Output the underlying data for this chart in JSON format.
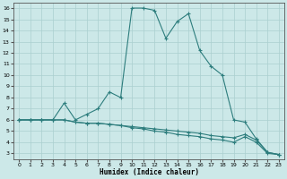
{
  "xlabel": "Humidex (Indice chaleur)",
  "bg_color": "#cce8e8",
  "line_color": "#2d7d7d",
  "grid_color": "#aacfcf",
  "xlim": [
    -0.5,
    23.5
  ],
  "ylim": [
    2.5,
    16.5
  ],
  "xticks": [
    0,
    1,
    2,
    3,
    4,
    5,
    6,
    7,
    8,
    9,
    10,
    11,
    12,
    13,
    14,
    15,
    16,
    17,
    18,
    19,
    20,
    21,
    22,
    23
  ],
  "yticks": [
    3,
    4,
    5,
    6,
    7,
    8,
    9,
    10,
    11,
    12,
    13,
    14,
    15,
    16
  ],
  "line1_x": [
    0,
    1,
    2,
    3,
    4,
    5,
    6,
    7,
    8,
    9,
    10,
    11,
    12,
    13,
    14,
    15,
    16,
    17,
    18,
    19,
    20,
    21,
    22,
    23
  ],
  "line1_y": [
    6,
    6,
    6,
    6,
    7.5,
    6,
    6.5,
    7.0,
    8.5,
    8.0,
    16,
    16,
    15.8,
    13.3,
    14.8,
    15.5,
    12.2,
    10.8,
    10.0,
    6.0,
    5.8,
    4.3,
    3.1,
    2.9
  ],
  "line2_x": [
    0,
    1,
    2,
    3,
    4,
    5,
    6,
    7,
    8,
    9,
    10,
    11,
    12,
    13,
    14,
    15,
    16,
    17,
    18,
    19,
    20,
    21,
    22,
    23
  ],
  "line2_y": [
    6,
    6,
    6,
    6,
    6,
    5.8,
    5.7,
    5.7,
    5.6,
    5.5,
    5.4,
    5.3,
    5.2,
    5.1,
    5.0,
    4.9,
    4.8,
    4.6,
    4.5,
    4.4,
    4.7,
    4.2,
    3.1,
    2.9
  ],
  "line3_x": [
    0,
    1,
    2,
    3,
    4,
    5,
    6,
    7,
    8,
    9,
    10,
    11,
    12,
    13,
    14,
    15,
    16,
    17,
    18,
    19,
    20,
    21,
    22,
    23
  ],
  "line3_y": [
    6,
    6,
    6,
    6,
    6,
    5.8,
    5.7,
    5.7,
    5.6,
    5.5,
    5.3,
    5.2,
    5.0,
    4.9,
    4.7,
    4.6,
    4.5,
    4.3,
    4.2,
    4.0,
    4.5,
    4.0,
    3.0,
    2.9
  ]
}
